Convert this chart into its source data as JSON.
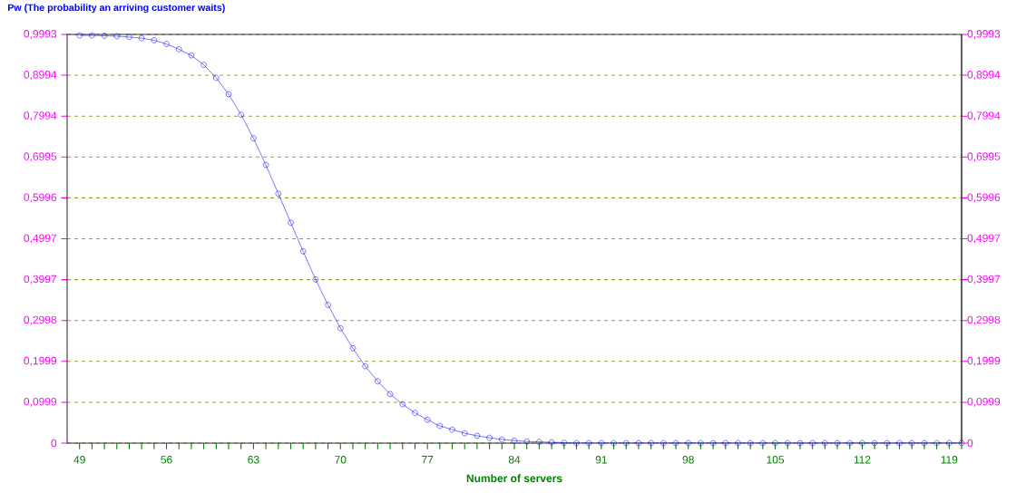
{
  "chart_data": {
    "type": "line",
    "title": "Pw (The probability an arriving customer waits)",
    "xlabel": "Number of servers",
    "x": [
      49,
      50,
      51,
      52,
      53,
      54,
      55,
      56,
      57,
      58,
      59,
      60,
      61,
      62,
      63,
      64,
      65,
      66,
      67,
      68,
      69,
      70,
      71,
      72,
      73,
      74,
      75,
      76,
      77,
      78,
      79,
      80,
      81,
      82,
      83,
      84,
      85,
      86,
      87,
      88,
      89,
      90,
      91,
      92,
      93,
      94,
      95,
      96,
      97,
      98,
      99,
      100,
      101,
      102,
      103,
      104,
      105,
      106,
      107,
      108,
      109,
      110,
      111,
      112,
      113,
      114,
      115,
      116,
      117,
      118,
      119,
      120
    ],
    "series": [
      {
        "color": "#0000ff",
        "values": [
          0.997,
          0.997,
          0.996,
          0.995,
          0.993,
          0.99,
          0.985,
          0.976,
          0.963,
          0.948,
          0.925,
          0.893,
          0.853,
          0.803,
          0.745,
          0.68,
          0.61,
          0.539,
          0.469,
          0.4,
          0.338,
          0.281,
          0.232,
          0.188,
          0.151,
          0.12,
          0.095,
          0.074,
          0.057,
          0.042,
          0.033,
          0.024,
          0.018,
          0.013,
          0.009,
          0.006,
          0.004,
          0.003,
          0.002,
          0.001,
          0,
          0,
          0,
          0,
          0,
          0,
          0,
          0,
          0,
          0,
          0,
          0,
          0,
          0,
          0,
          0,
          0,
          0,
          0,
          0,
          0,
          0,
          0,
          0,
          0,
          0,
          0,
          0,
          0,
          0,
          0,
          0
        ]
      }
    ],
    "xlim": [
      48,
      120
    ],
    "xticks": [
      49,
      {
        "value": 50,
        "label": null
      },
      {
        "value": 51,
        "label": null
      },
      {
        "value": 52,
        "label": null
      },
      {
        "value": 53,
        "label": null
      },
      {
        "value": 54,
        "label": null
      },
      {
        "value": 55,
        "label": null
      },
      56,
      {
        "value": 57,
        "label": null
      },
      {
        "value": 58,
        "label": null
      },
      {
        "value": 59,
        "label": null
      },
      {
        "value": 60,
        "label": null
      },
      {
        "value": 61,
        "label": null
      },
      {
        "value": 62,
        "label": null
      },
      63,
      {
        "value": 64,
        "label": null
      },
      {
        "value": 65,
        "label": null
      },
      {
        "value": 66,
        "label": null
      },
      {
        "value": 67,
        "label": null
      },
      {
        "value": 68,
        "label": null
      },
      {
        "value": 69,
        "label": null
      },
      70,
      {
        "value": 71,
        "label": null
      },
      {
        "value": 72,
        "label": null
      },
      {
        "value": 73,
        "label": null
      },
      {
        "value": 74,
        "label": null
      },
      {
        "value": 75,
        "label": null
      },
      {
        "value": 76,
        "label": null
      },
      77,
      {
        "value": 78,
        "label": null
      },
      {
        "value": 79,
        "label": null
      },
      {
        "value": 80,
        "label": null
      },
      {
        "value": 81,
        "label": null
      },
      {
        "value": 82,
        "label": null
      },
      {
        "value": 83,
        "label": null
      },
      84,
      {
        "value": 85,
        "label": null
      },
      {
        "value": 86,
        "label": null
      },
      {
        "value": 87,
        "label": null
      },
      {
        "value": 88,
        "label": null
      },
      {
        "value": 89,
        "label": null
      },
      {
        "value": 90,
        "label": null
      },
      91,
      {
        "value": 92,
        "label": null
      },
      {
        "value": 93,
        "label": null
      },
      {
        "value": 94,
        "label": null
      },
      {
        "value": 95,
        "label": null
      },
      {
        "value": 96,
        "label": null
      },
      {
        "value": 97,
        "label": null
      },
      98,
      {
        "value": 99,
        "label": null
      },
      {
        "value": 100,
        "label": null
      },
      {
        "value": 101,
        "label": null
      },
      {
        "value": 102,
        "label": null
      },
      {
        "value": 103,
        "label": null
      },
      {
        "value": 104,
        "label": null
      },
      105,
      {
        "value": 106,
        "label": null
      },
      {
        "value": 107,
        "label": null
      },
      {
        "value": 108,
        "label": null
      },
      {
        "value": 109,
        "label": null
      },
      {
        "value": 110,
        "label": null
      },
      {
        "value": 111,
        "label": null
      },
      112,
      {
        "value": 113,
        "label": null
      },
      {
        "value": 114,
        "label": null
      },
      {
        "value": 115,
        "label": null
      },
      {
        "value": 116,
        "label": null
      },
      {
        "value": 117,
        "label": null
      },
      {
        "value": 118,
        "label": null
      },
      119,
      {
        "value": 120,
        "label": null
      }
    ],
    "ylim": [
      0,
      0.9993
    ],
    "yticks": [
      0,
      {
        "value": 0.0999,
        "label": "0,0999"
      },
      {
        "value": 0.1999,
        "label": "0,1999"
      },
      {
        "value": 0.2998,
        "label": "0,2998"
      },
      {
        "value": 0.3997,
        "label": "0,3997"
      },
      {
        "value": 0.4997,
        "label": "0,4997"
      },
      {
        "value": 0.5996,
        "label": "0,5996"
      },
      {
        "value": 0.6995,
        "label": "0,6995"
      },
      {
        "value": 0.7994,
        "label": "0,7994"
      },
      {
        "value": 0.8994,
        "label": "0,8994"
      },
      {
        "value": 0.9993,
        "label": "0,9993"
      }
    ],
    "y2lim": [
      0,
      0.9993
    ],
    "y2ticks": [
      0,
      {
        "value": 0.0999,
        "label": "0,0999"
      },
      {
        "value": 0.1999,
        "label": "0,1999"
      },
      {
        "value": 0.2998,
        "label": "0,2998"
      },
      {
        "value": 0.3997,
        "label": "0,3997"
      },
      {
        "value": 0.4997,
        "label": "0,4997"
      },
      {
        "value": 0.5996,
        "label": "0,5996"
      },
      {
        "value": 0.6995,
        "label": "0,6995"
      },
      {
        "value": 0.7994,
        "label": "0,7994"
      },
      {
        "value": 0.8994,
        "label": "0,8994"
      },
      {
        "value": 0.9993,
        "label": "0,9993"
      }
    ],
    "grid": "y",
    "marker": "circle",
    "line_style": "solid"
  }
}
